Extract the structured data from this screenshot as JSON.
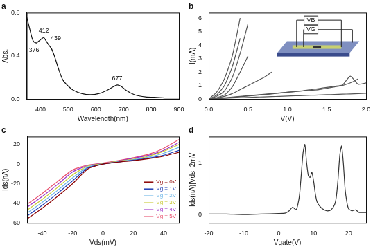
{
  "chart_data": [
    {
      "type": "line",
      "title": "a",
      "x_label": "Wavelength(nm)",
      "y_label": "Abs.",
      "x": [
        350,
        360,
        370,
        376,
        385,
        395,
        405,
        412,
        420,
        430,
        439,
        450,
        465,
        480,
        500,
        520,
        550,
        580,
        610,
        640,
        660,
        677,
        690,
        710,
        740,
        780,
        820,
        860,
        900
      ],
      "values": [
        0.76,
        0.66,
        0.56,
        0.53,
        0.52,
        0.54,
        0.56,
        0.57,
        0.54,
        0.5,
        0.47,
        0.4,
        0.28,
        0.18,
        0.12,
        0.08,
        0.05,
        0.04,
        0.05,
        0.08,
        0.11,
        0.13,
        0.12,
        0.08,
        0.04,
        0.02,
        0.015,
        0.01,
        0.01
      ],
      "color": "#111111",
      "xlim": [
        350,
        900
      ],
      "xticks": [
        400,
        500,
        600,
        700,
        800,
        900
      ],
      "ylim": [
        0,
        0.8
      ],
      "yticks": [
        {
          "value": 0,
          "label": "0.0"
        },
        {
          "value": 0.4,
          "label": "0.4"
        },
        {
          "value": 0.8,
          "label": "0.8"
        }
      ],
      "grid": false,
      "annotations": [
        {
          "text": "376",
          "x": 376,
          "y": 0.45
        },
        {
          "text": "412",
          "x": 412,
          "y": 0.63
        },
        {
          "text": "439",
          "x": 455,
          "y": 0.56
        },
        {
          "text": "677",
          "x": 677,
          "y": 0.19
        }
      ]
    },
    {
      "type": "line",
      "title": "b",
      "x_label": "V(V)",
      "y_label": "I(mA)",
      "x": [
        0,
        0.1,
        0.2,
        0.3,
        0.4,
        0.5,
        0.6,
        0.7,
        0.8,
        0.9,
        1.0,
        1.1,
        1.2,
        1.3,
        1.4,
        1.5,
        1.6,
        1.7,
        1.8,
        1.9,
        2.0
      ],
      "color": "#555555",
      "series": [
        {
          "values": [
            0,
            0.5,
            1.5,
            3.2,
            6.0,
            null,
            null,
            null,
            null,
            null,
            null,
            null,
            null,
            null,
            null,
            null,
            null,
            null,
            null,
            null,
            null
          ]
        },
        {
          "values": [
            0,
            0.3,
            1.0,
            2.4,
            4.5,
            null,
            null,
            null,
            null,
            null,
            null,
            null,
            null,
            null,
            null,
            null,
            null,
            null,
            null,
            null,
            null
          ]
        },
        {
          "values": [
            0,
            0.2,
            0.6,
            1.6,
            3.4,
            5.6,
            null,
            null,
            null,
            null,
            null,
            null,
            null,
            null,
            null,
            null,
            null,
            null,
            null,
            null,
            null
          ]
        },
        {
          "values": [
            0,
            0.1,
            0.3,
            0.9,
            2.0,
            3.2,
            null,
            null,
            null,
            null,
            null,
            null,
            null,
            null,
            null,
            null,
            null,
            null,
            null,
            null,
            null
          ]
        },
        {
          "values": [
            0,
            0.08,
            0.2,
            0.4,
            0.7,
            1.0,
            1.3,
            1.6,
            2.0,
            null,
            null,
            null,
            null,
            null,
            null,
            null,
            null,
            null,
            null,
            null,
            null
          ]
        },
        {
          "values": [
            0,
            0.05,
            0.1,
            0.15,
            0.2,
            0.25,
            0.3,
            0.35,
            0.4,
            0.45,
            0.5,
            0.55,
            0.6,
            0.65,
            0.7,
            0.8,
            0.9,
            1.0,
            1.2,
            1.5,
            null
          ]
        },
        {
          "values": [
            0,
            0.02,
            0.05,
            0.08,
            0.1,
            0.12,
            0.14,
            0.16,
            0.18,
            0.2,
            0.22,
            0.24,
            0.26,
            0.28,
            0.3,
            0.32,
            0.34,
            0.36,
            0.38,
            0.4,
            0.42
          ]
        },
        {
          "values": [
            0,
            0.03,
            0.07,
            0.12,
            0.17,
            0.22,
            0.27,
            0.32,
            0.38,
            0.44,
            0.5,
            0.56,
            0.62,
            0.7,
            0.78,
            0.86,
            0.95,
            1.05,
            1.7,
            1.1,
            1.2
          ]
        }
      ],
      "xlim": [
        0,
        2.0
      ],
      "xticks": [
        {
          "value": 0,
          "label": "0.0"
        },
        {
          "value": 0.5,
          "label": "0.5"
        },
        {
          "value": 1.0,
          "label": "1.0"
        },
        {
          "value": 1.5,
          "label": "1.5"
        },
        {
          "value": 2.0,
          "label": "2.0"
        }
      ],
      "ylim": [
        0,
        6.4
      ],
      "yticks": [
        0,
        1,
        2,
        3,
        4,
        5,
        6
      ],
      "grid": false,
      "annotations": [
        {
          "text": "VB",
          "x": 1.3,
          "y": 5.85
        },
        {
          "text": "VG",
          "x": 1.3,
          "y": 5.15
        }
      ]
    },
    {
      "type": "line",
      "title": "c",
      "x_label": "Vds(mV)",
      "y_label": "Ids(nA)",
      "x": [
        -50,
        -40,
        -30,
        -20,
        -10,
        0,
        10,
        20,
        30,
        40,
        50
      ],
      "series": [
        {
          "name": "Vg = 0V",
          "color": "#8b0000",
          "values": [
            -56,
            -45,
            -33,
            -20,
            -5,
            0,
            2,
            3.5,
            5.5,
            8,
            12
          ]
        },
        {
          "name": "Vg = 1V",
          "color": "#1e3cb4",
          "values": [
            -53,
            -42,
            -30,
            -17,
            -4,
            0,
            2,
            4,
            6,
            9,
            14
          ]
        },
        {
          "name": "Vg = 2V",
          "color": "#6ab4e6",
          "values": [
            -50,
            -39,
            -27,
            -14,
            -3,
            0,
            2.5,
            4.5,
            7,
            11,
            17
          ]
        },
        {
          "name": "Vg = 3V",
          "color": "#c8c832",
          "values": [
            -47,
            -36,
            -24,
            -11,
            -2,
            0.3,
            3,
            5,
            8,
            13,
            20
          ]
        },
        {
          "name": "Vg = 4V",
          "color": "#9b30c8",
          "values": [
            -44,
            -33,
            -21,
            -8,
            -1.5,
            0.5,
            3,
            6,
            9,
            14,
            22
          ]
        },
        {
          "name": "Vg = 5V",
          "color": "#e8506e",
          "values": [
            -41,
            -30,
            -18,
            -6,
            -1,
            1,
            3.5,
            6.5,
            10,
            16,
            25
          ]
        }
      ],
      "xlim": [
        -50,
        50
      ],
      "xticks": [
        -40,
        -20,
        0,
        20,
        40
      ],
      "ylim": [
        -60,
        28
      ],
      "yticks": [
        -60,
        -40,
        -20,
        0,
        20
      ],
      "grid": false,
      "legend": "lower right"
    },
    {
      "type": "line",
      "title": "d",
      "x_label": "Vgate(V)",
      "y_label": "Ids(nA)|Vds=2mV",
      "x": [
        -20,
        -15,
        -10,
        -5,
        0,
        2,
        3,
        4,
        5,
        5.5,
        6,
        6.5,
        7,
        7.5,
        8,
        8.5,
        9,
        9.5,
        10,
        10.5,
        11,
        12,
        13,
        14,
        15,
        16,
        16.5,
        17,
        17.5,
        18,
        18.5,
        19,
        19.5,
        20,
        21,
        22,
        23,
        24,
        25
      ],
      "values": [
        0.02,
        0.02,
        0.01,
        0.02,
        0.03,
        0.04,
        0.08,
        0.15,
        0.1,
        0.2,
        0.4,
        0.8,
        1.2,
        1.35,
        1.0,
        0.75,
        0.72,
        0.82,
        0.65,
        0.4,
        0.25,
        0.15,
        0.1,
        0.08,
        0.1,
        0.2,
        0.35,
        0.7,
        1.15,
        1.32,
        1.0,
        0.5,
        0.25,
        0.12,
        0.08,
        0.1,
        0.05,
        0.05,
        0.05
      ],
      "color": "#333333",
      "xlim": [
        -20,
        25
      ],
      "xticks": [
        -20,
        -10,
        0,
        10,
        20
      ],
      "ylim": [
        -0.15,
        1.5
      ],
      "yticks": [
        0,
        1
      ],
      "grid": false
    }
  ]
}
